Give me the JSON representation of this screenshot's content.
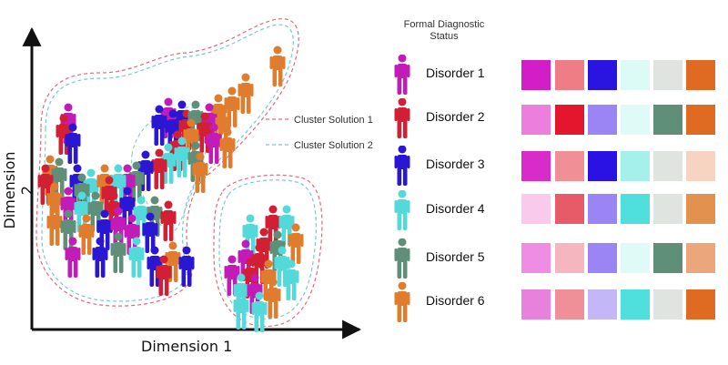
{
  "axes": {
    "x_title": "Dimension 1",
    "y_title": "Dimension 2"
  },
  "clusters": [
    {
      "label": "Cluster Solution 1",
      "color": "#e06a78"
    },
    {
      "label": "Cluster Solution 2",
      "color": "#79c7d4"
    }
  ],
  "legend": {
    "title_line1": "Formal Diagnostic",
    "title_line2": "Status",
    "items": [
      {
        "label": "Disorder 1",
        "color": "#c21bb7",
        "swatches": [
          "#d21ec6",
          "#ef7d86",
          "#2a14e0",
          "#dcfbf6",
          "#dfe4e1",
          "#df6b23"
        ]
      },
      {
        "label": "Disorder 2",
        "color": "#d31f34",
        "swatches": [
          "#ec7fde",
          "#e3162e",
          "#9b84f3",
          "#e0fbf7",
          "#5f8e79",
          "#df6b23"
        ]
      },
      {
        "label": "Disorder 3",
        "color": "#2a17d3",
        "swatches": [
          "#d72cc9",
          "#f08f95",
          "#2912e3",
          "#a6f0ec",
          "#dfe4e1",
          "#f6d4c1"
        ]
      },
      {
        "label": "Disorder 4",
        "color": "#54d9da",
        "swatches": [
          "#f9caec",
          "#e65b67",
          "#9b84f3",
          "#4fe0de",
          "#dfe4e1",
          "#e2914f"
        ]
      },
      {
        "label": "Disorder 5",
        "color": "#5f8e79",
        "swatches": [
          "#ef8de4",
          "#f5b6bf",
          "#9b84f3",
          "#e0fbf7",
          "#5f8e79",
          "#eba77b"
        ]
      },
      {
        "label": "Disorder 6",
        "color": "#df7c2e",
        "swatches": [
          "#e781dc",
          "#ef8f97",
          "#c3b7f7",
          "#4fe0de",
          "#dfe4e1",
          "#df6b23"
        ]
      }
    ]
  }
}
